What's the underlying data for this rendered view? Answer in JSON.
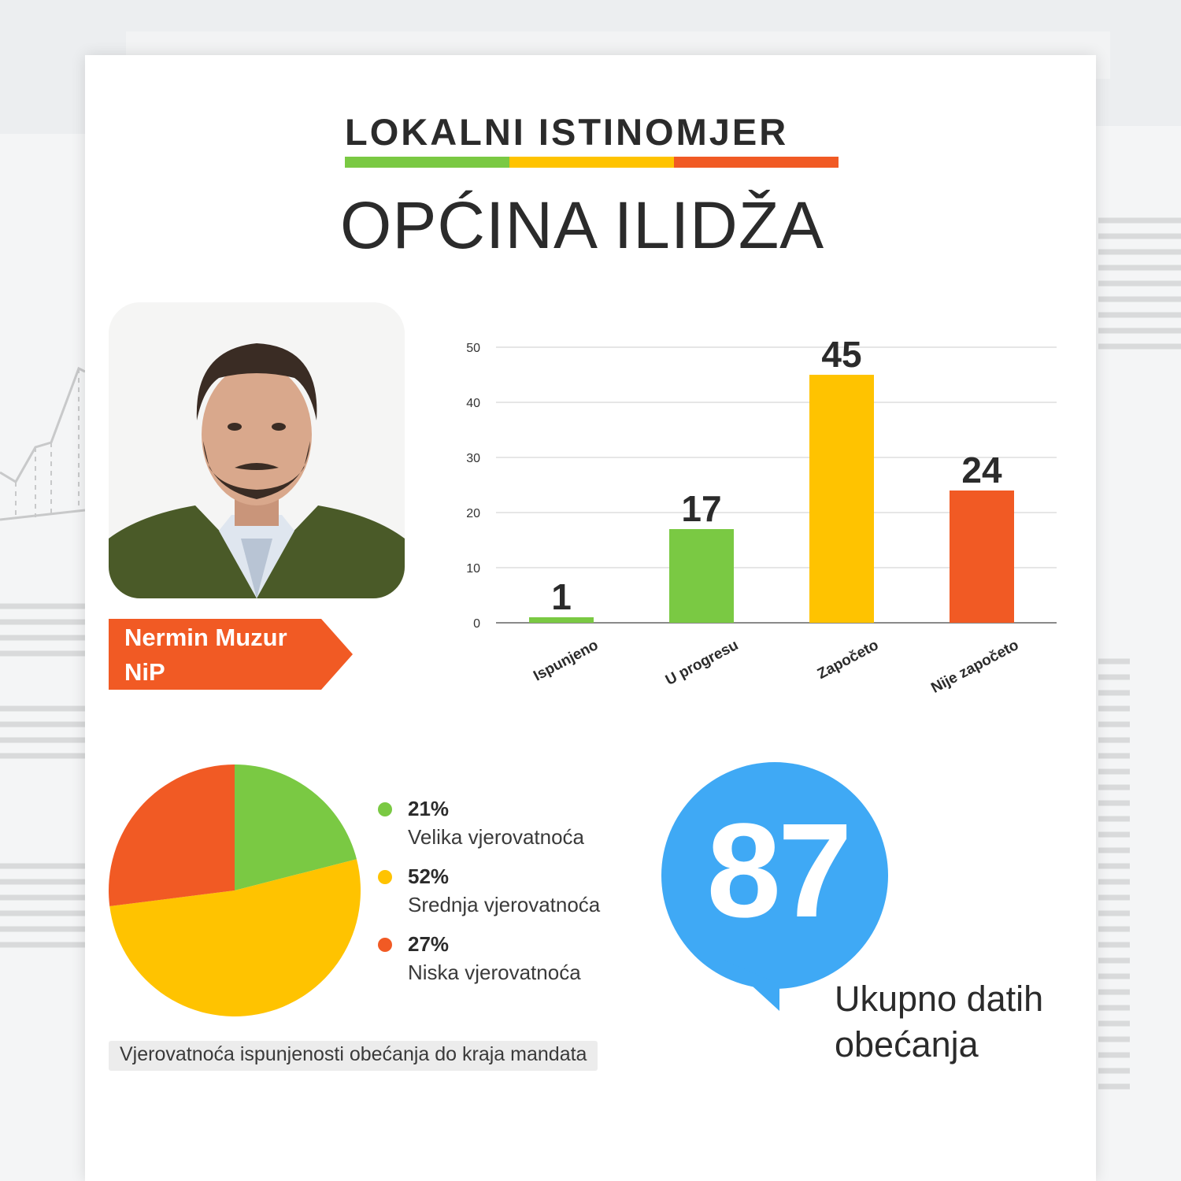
{
  "header": {
    "title": "LOKALNI ISTINOMJER",
    "subtitle": "OPĆINA ILIDŽA",
    "bar_colors": [
      "#7ac943",
      "#ffc300",
      "#f15a24"
    ]
  },
  "politician": {
    "name": "Nermin Muzur",
    "party": "NiP",
    "tag_color": "#f15a24"
  },
  "chart_data": [
    {
      "type": "bar",
      "categories": [
        "Ispunjeno",
        "U progresu",
        "Započeto",
        "Nije započeto"
      ],
      "values": [
        1,
        17,
        45,
        24
      ],
      "data_labels": [
        "1",
        "17",
        "45",
        "24"
      ],
      "colors": [
        "#7ac943",
        "#7ac943",
        "#ffc300",
        "#f15a24"
      ],
      "ylim": [
        0,
        50
      ],
      "yticks": [
        "0",
        "10",
        "20",
        "30",
        "40",
        "50"
      ],
      "grid": true
    },
    {
      "type": "pie",
      "labels": [
        "Velika vjerovatnoća",
        "Srednja vjerovatnoća",
        "Niska vjerovatnoća"
      ],
      "values": [
        21,
        52,
        27
      ],
      "percent_labels": [
        "21%",
        "52%",
        "27%"
      ],
      "colors": [
        "#7ac943",
        "#ffc300",
        "#f15a24"
      ],
      "caption": "Vjerovatnoća ispunjenosti obećanja do kraja mandata"
    }
  ],
  "total": {
    "value": "87",
    "label_line1": "Ukupno datih",
    "label_line2": "obećanja",
    "color": "#3fa9f5"
  }
}
